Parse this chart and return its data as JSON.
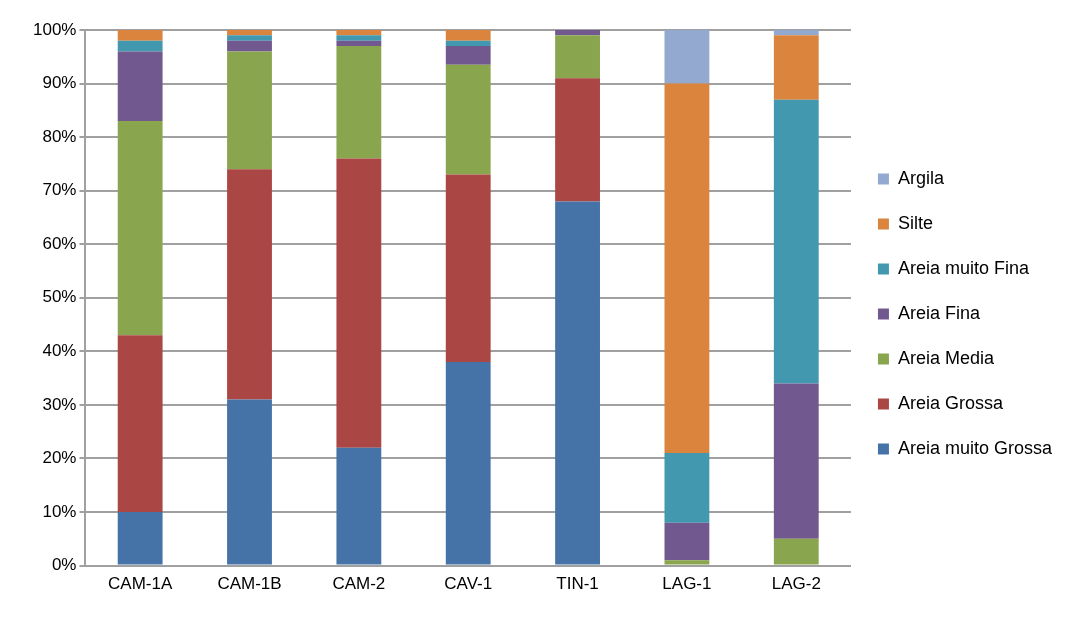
{
  "chart_data": {
    "type": "bar",
    "stacked": true,
    "categories": [
      "CAM-1A",
      "CAM-1B",
      "CAM-2",
      "CAV-1",
      "TIN-1",
      "LAG-1",
      "LAG-2"
    ],
    "series": [
      {
        "name": "Areia muito Grossa",
        "color": "#4572a7",
        "values": [
          10,
          31,
          22,
          38,
          68,
          0,
          0
        ]
      },
      {
        "name": "Areia Grossa",
        "color": "#aa4643",
        "values": [
          33,
          43,
          54,
          35,
          23,
          0,
          0
        ]
      },
      {
        "name": "Areia Media",
        "color": "#89a54e",
        "values": [
          40,
          22,
          21,
          20.5,
          8,
          1,
          5
        ]
      },
      {
        "name": "Areia Fina",
        "color": "#71588f",
        "values": [
          13,
          2,
          1,
          3.5,
          1,
          7,
          29
        ]
      },
      {
        "name": "Areia muito Fina",
        "color": "#4198af",
        "values": [
          2,
          1,
          1,
          1,
          0,
          13,
          53
        ]
      },
      {
        "name": "Silte",
        "color": "#db843d",
        "values": [
          2,
          1,
          1,
          2,
          0,
          69,
          12
        ]
      },
      {
        "name": "Argila",
        "color": "#93a9cf",
        "values": [
          0,
          0,
          0,
          0,
          0,
          10,
          1
        ]
      }
    ],
    "ylim": [
      0,
      100
    ],
    "yticks": [
      {
        "value": 0,
        "label": "0%"
      },
      {
        "value": 10,
        "label": "10%"
      },
      {
        "value": 20,
        "label": "20%"
      },
      {
        "value": 30,
        "label": "30%"
      },
      {
        "value": 40,
        "label": "40%"
      },
      {
        "value": 50,
        "label": "50%"
      },
      {
        "value": 60,
        "label": "60%"
      },
      {
        "value": 70,
        "label": "70%"
      },
      {
        "value": 80,
        "label": "80%"
      },
      {
        "value": 90,
        "label": "90%"
      },
      {
        "value": 100,
        "label": "100%"
      }
    ],
    "grid": "y",
    "legend": "right"
  }
}
